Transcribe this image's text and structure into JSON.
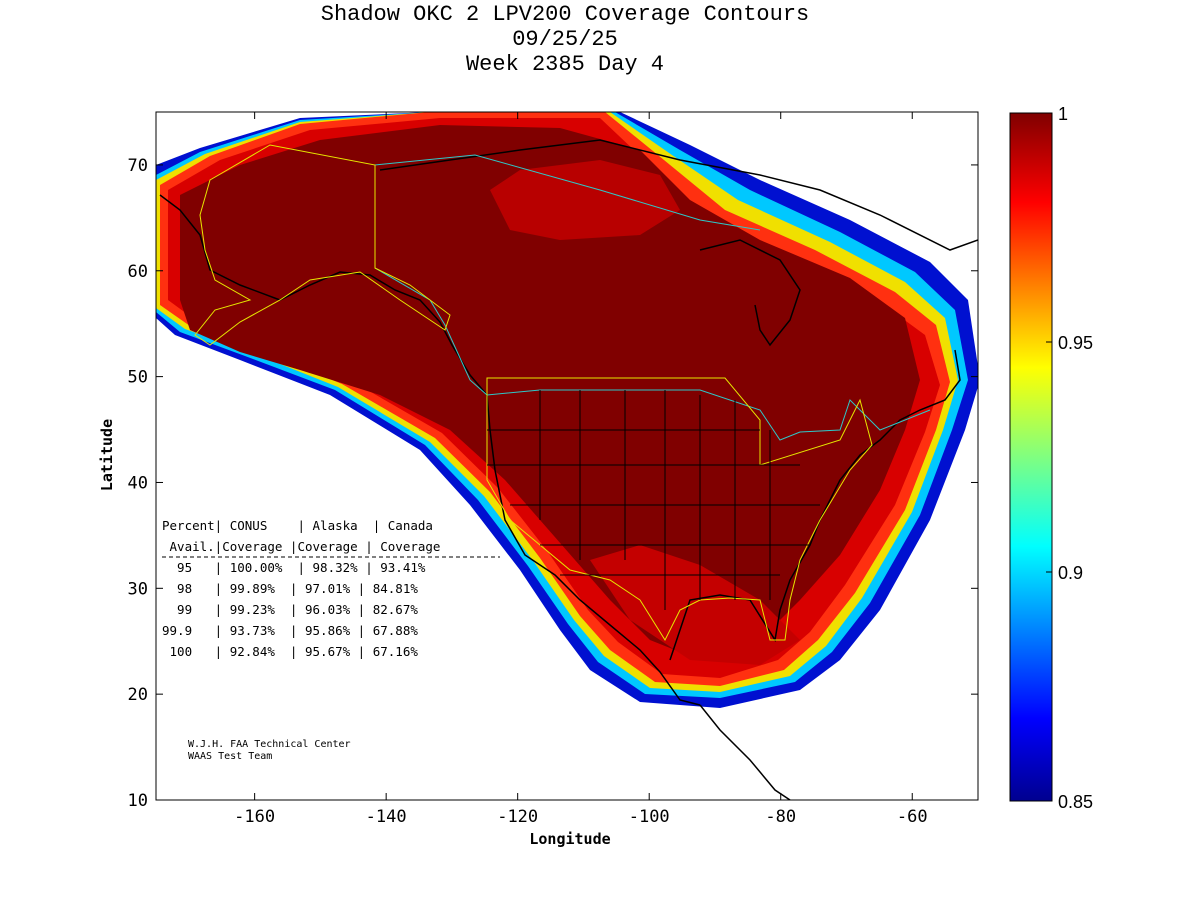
{
  "title_lines": [
    "Shadow OKC 2 LPV200 Coverage Contours",
    "09/25/25",
    "Week 2385 Day 4"
  ],
  "map": {
    "x_axis": {
      "label": "Longitude",
      "range": [
        -175,
        -50
      ],
      "ticks": [
        -160,
        -140,
        -120,
        -100,
        -80,
        -60
      ],
      "tick_labels": [
        "-160",
        "-140",
        "-120",
        "-100",
        "-80",
        "-60"
      ]
    },
    "y_axis": {
      "label": "Latitude",
      "range": [
        10,
        75
      ],
      "ticks": [
        10,
        20,
        30,
        40,
        50,
        60,
        70
      ],
      "tick_labels": [
        "10",
        "20",
        "30",
        "40",
        "50",
        "60",
        "70"
      ]
    },
    "colorbar": {
      "min": 0.85,
      "max": 1,
      "tick_labels": [
        "1",
        "0.95",
        "0.9",
        "0.85"
      ],
      "colormap": "jet"
    }
  },
  "table": {
    "headers": [
      "Percent| CONUS    | Alaska  | Canada",
      " Avail.|Coverage |Coverage | Coverage"
    ],
    "rows": [
      "  95   | 100.00%  | 98.32% | 93.41%",
      "  98   | 99.89%  | 97.01% | 84.81%",
      "  99   | 99.23%  | 96.03% | 82.67%",
      "99.9   | 93.73%  | 95.86% | 67.88%",
      " 100   | 92.84%  | 95.67% | 67.16%"
    ]
  },
  "credit_lines": [
    "W.J.H. FAA Technical Center",
    "WAAS Test Team"
  ],
  "colors": {
    "background": "#ffffff",
    "coast": "#000000",
    "boundary_yellow": "#e6e600",
    "boundary_cyan": "#2ec8c8",
    "max_availability": "#800000"
  }
}
